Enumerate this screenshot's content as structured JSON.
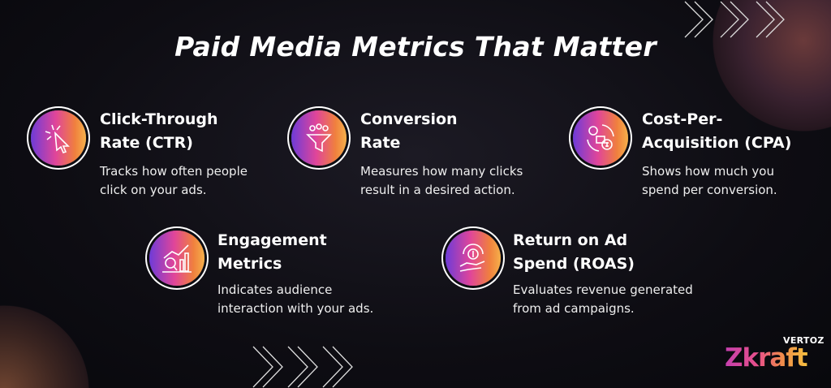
{
  "title": "Paid Media Metrics That Matter",
  "cards": [
    {
      "title1": "Click-Through",
      "title2": "Rate (CTR)",
      "desc1": "Tracks how often people",
      "desc2": "click on your ads.",
      "icon": "cursor-click-icon"
    },
    {
      "title1": "Conversion",
      "title2": "Rate",
      "desc1": "Measures how many clicks",
      "desc2": "result in a desired action.",
      "icon": "funnel-people-icon"
    },
    {
      "title1": "Cost-Per-",
      "title2": "Acquisition (CPA)",
      "desc1": "Shows how much you",
      "desc2": "spend per conversion.",
      "icon": "gear-dollar-cycle-icon"
    },
    {
      "title1": "Engagement",
      "title2": "Metrics",
      "desc1": "Indicates audience",
      "desc2": "interaction with your ads.",
      "icon": "analytics-chart-icon"
    },
    {
      "title1": "Return on Ad",
      "title2": "Spend (ROAS)",
      "desc1": "Evaluates revenue generated",
      "desc2": "from ad campaigns.",
      "icon": "hand-coin-return-icon"
    }
  ],
  "logo": {
    "top": "VERTOZ",
    "main": "Zkraft"
  },
  "colors": {
    "gradient_start": "#6d3bd8",
    "gradient_mid": "#e0459a",
    "gradient_end": "#f5b04a"
  }
}
